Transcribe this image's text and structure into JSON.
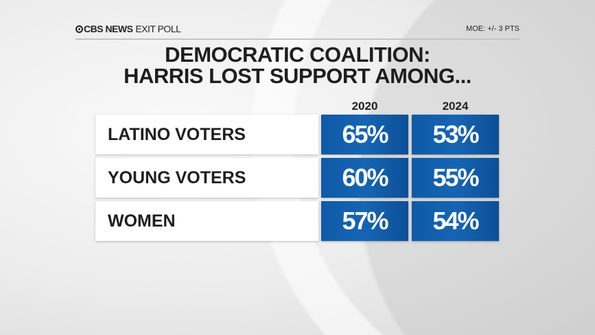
{
  "header": {
    "brand": "CBS NEWS",
    "brand_suffix": "EXIT POLL",
    "moe": "MOE: +/- 3 PTS"
  },
  "title_line1": "DEMOCRATIC COALITION:",
  "title_line2": "HARRIS LOST SUPPORT AMONG...",
  "colors": {
    "cell": "#1565b4",
    "text": "#1e1e1e"
  },
  "chart_data": {
    "type": "table",
    "title": "DEMOCRATIC COALITION: HARRIS LOST SUPPORT AMONG...",
    "columns": [
      "2020",
      "2024"
    ],
    "rows": [
      {
        "label": "LATINO VOTERS",
        "values": [
          "65%",
          "53%"
        ]
      },
      {
        "label": "YOUNG VOTERS",
        "values": [
          "60%",
          "55%"
        ]
      },
      {
        "label": "WOMEN",
        "values": [
          "57%",
          "54%"
        ]
      }
    ]
  }
}
